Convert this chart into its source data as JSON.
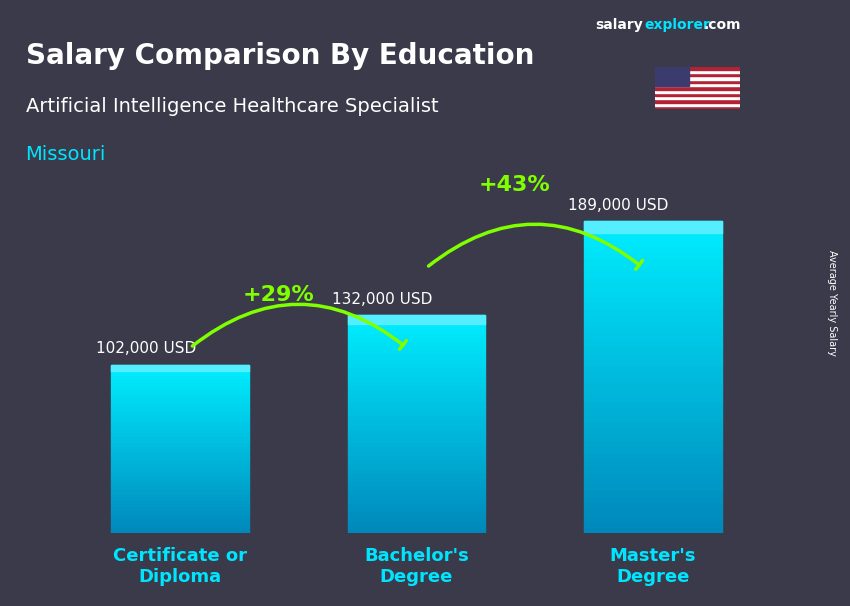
{
  "title_main": "Salary Comparison By Education",
  "title_sub": "Artificial Intelligence Healthcare Specialist",
  "title_location": "Missouri",
  "categories": [
    "Certificate or\nDiploma",
    "Bachelor's\nDegree",
    "Master's\nDegree"
  ],
  "values": [
    102000,
    132000,
    189000
  ],
  "value_labels": [
    "102,000 USD",
    "132,000 USD",
    "189,000 USD"
  ],
  "pct_labels": [
    "+29%",
    "+43%"
  ],
  "bar_color_top": "#00d4f5",
  "bar_color_bottom": "#0099cc",
  "bar_color_mid": "#00bbdd",
  "background_color": "#1a1a2e",
  "text_color_white": "#ffffff",
  "text_color_cyan": "#00e5ff",
  "text_color_green": "#7fff00",
  "ylabel": "Average Yearly Salary",
  "brand_salary": "salary",
  "brand_explorer": "explorer",
  "brand_com": ".com",
  "ylim_max": 220000,
  "arrow_color": "#7fff00"
}
